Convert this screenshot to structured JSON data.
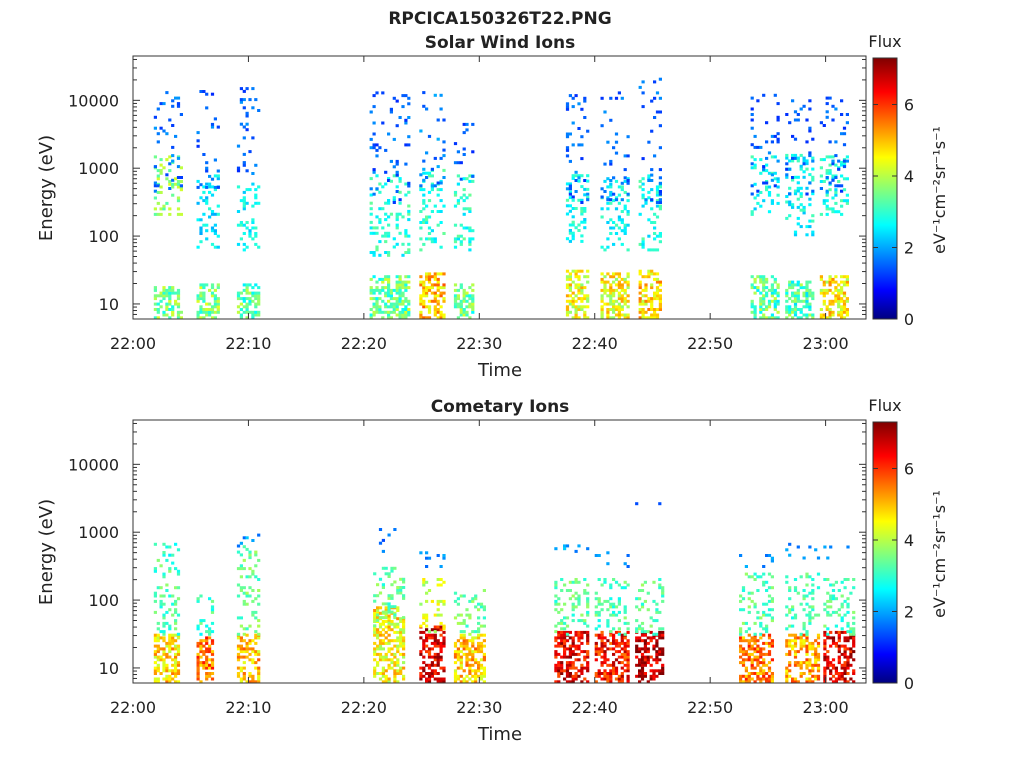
{
  "figure_title": "RPCICA150326T22.PNG",
  "chart_data": [
    {
      "type": "heatmap",
      "title": "Solar Wind Ions",
      "xlabel": "Time",
      "ylabel": "Energy (eV)",
      "y_scale": "log",
      "ylim": [
        6,
        45000
      ],
      "x_ticks": [
        "22:00",
        "22:10",
        "22:20",
        "22:30",
        "22:40",
        "22:50",
        "23:00"
      ],
      "x_ticks_min": [
        0,
        10,
        20,
        30,
        40,
        50,
        60
      ],
      "xlim_min": [
        0,
        63.5
      ],
      "y_ticks": [
        "10",
        "100",
        "1000",
        "10000"
      ],
      "y_ticks_values": [
        10,
        100,
        1000,
        10000
      ],
      "colorbar": {
        "title": "Flux",
        "label": "eV⁻¹cm⁻²sr⁻¹s⁻¹",
        "ticks": [
          "0",
          "2",
          "4",
          "6"
        ],
        "range": [
          0,
          7.3
        ],
        "colormap": "jet"
      },
      "bursts": [
        {
          "t_min": [
            1.8,
            4.2
          ],
          "low_band_eV": [
            6,
            18
          ],
          "low_flux": 3.5,
          "mid_eV": [
            200,
            1500
          ],
          "mid_flux": 3.8,
          "high_eV": [
            400,
            15000
          ],
          "high_flux": 1.7
        },
        {
          "t_min": [
            5.5,
            7.5
          ],
          "low_band_eV": [
            6,
            20
          ],
          "low_flux": 3.6,
          "mid_eV": [
            60,
            800
          ],
          "mid_flux": 2.6,
          "high_eV": [
            500,
            13000
          ],
          "high_flux": 1.6
        },
        {
          "t_min": [
            9.0,
            11.0
          ],
          "low_band_eV": [
            6,
            20
          ],
          "low_flux": 3.4,
          "mid_eV": [
            60,
            600
          ],
          "mid_flux": 2.8,
          "high_eV": [
            800,
            15000
          ],
          "high_flux": 1.6
        },
        {
          "t_min": [
            20.5,
            24.0
          ],
          "low_band_eV": [
            6,
            25
          ],
          "low_flux": 3.5,
          "mid_eV": [
            50,
            800
          ],
          "mid_flux": 3.0,
          "high_eV": [
            300,
            14000
          ],
          "high_flux": 1.6
        },
        {
          "t_min": [
            24.8,
            27.0
          ],
          "low_band_eV": [
            6,
            28
          ],
          "low_flux": 5.0,
          "mid_eV": [
            60,
            900
          ],
          "mid_flux": 3.0,
          "high_eV": [
            400,
            13000
          ],
          "high_flux": 1.8
        },
        {
          "t_min": [
            27.8,
            29.5
          ],
          "low_band_eV": [
            6,
            20
          ],
          "low_flux": 3.5,
          "mid_eV": [
            60,
            800
          ],
          "mid_flux": 3.0,
          "high_eV": [
            500,
            5000
          ],
          "high_flux": 1.5
        },
        {
          "t_min": [
            37.5,
            39.5
          ],
          "low_band_eV": [
            6,
            30
          ],
          "low_flux": 4.5,
          "mid_eV": [
            80,
            800
          ],
          "mid_flux": 2.9,
          "high_eV": [
            300,
            12000
          ],
          "high_flux": 1.6
        },
        {
          "t_min": [
            40.5,
            42.8
          ],
          "low_band_eV": [
            6,
            28
          ],
          "low_flux": 4.5,
          "mid_eV": [
            60,
            700
          ],
          "mid_flux": 2.8,
          "high_eV": [
            300,
            13000
          ],
          "high_flux": 1.6
        },
        {
          "t_min": [
            43.8,
            45.8
          ],
          "low_band_eV": [
            6,
            30
          ],
          "low_flux": 4.8,
          "mid_eV": [
            60,
            800
          ],
          "mid_flux": 2.9,
          "high_eV": [
            300,
            20000
          ],
          "high_flux": 1.6
        },
        {
          "t_min": [
            53.5,
            56.0
          ],
          "low_band_eV": [
            6,
            25
          ],
          "low_flux": 3.4,
          "mid_eV": [
            200,
            1500
          ],
          "mid_flux": 2.8,
          "high_eV": [
            400,
            12000
          ],
          "high_flux": 1.6
        },
        {
          "t_min": [
            56.5,
            59.0
          ],
          "low_band_eV": [
            6,
            22
          ],
          "low_flux": 3.3,
          "mid_eV": [
            100,
            1500
          ],
          "mid_flux": 2.8,
          "high_eV": [
            400,
            10000
          ],
          "high_flux": 1.6
        },
        {
          "t_min": [
            59.5,
            62.0
          ],
          "low_band_eV": [
            6,
            25
          ],
          "low_flux": 4.6,
          "mid_eV": [
            200,
            1500
          ],
          "mid_flux": 2.9,
          "high_eV": [
            400,
            12000
          ],
          "high_flux": 1.6
        }
      ]
    },
    {
      "type": "heatmap",
      "title": "Cometary Ions",
      "xlabel": "Time",
      "ylabel": "Energy (eV)",
      "y_scale": "log",
      "ylim": [
        6,
        45000
      ],
      "x_ticks": [
        "22:00",
        "22:10",
        "22:20",
        "22:30",
        "22:40",
        "22:50",
        "23:00"
      ],
      "x_ticks_min": [
        0,
        10,
        20,
        30,
        40,
        50,
        60
      ],
      "xlim_min": [
        0,
        63.5
      ],
      "y_ticks": [
        "10",
        "100",
        "1000",
        "10000"
      ],
      "y_ticks_values": [
        10,
        100,
        1000,
        10000
      ],
      "colorbar": {
        "title": "Flux",
        "label": "eV⁻¹cm⁻²sr⁻¹s⁻¹",
        "ticks": [
          "0",
          "2",
          "4",
          "6"
        ],
        "range": [
          0,
          7.3
        ],
        "colormap": "jet"
      },
      "bursts": [
        {
          "t_min": [
            1.8,
            4.0
          ],
          "low_band_eV": [
            6,
            30
          ],
          "low_flux": 4.8,
          "mid_eV": [
            30,
            400
          ],
          "mid_flux": 3.3,
          "high_eV": [
            400,
            700
          ],
          "high_flux": 3.0
        },
        {
          "t_min": [
            5.5,
            6.8
          ],
          "low_band_eV": [
            6,
            28
          ],
          "low_flux": 5.5,
          "mid_eV": [
            30,
            120
          ],
          "mid_flux": 3.2,
          "high_eV": [
            0,
            0
          ],
          "high_flux": 0
        },
        {
          "t_min": [
            9.0,
            10.8
          ],
          "low_band_eV": [
            6,
            30
          ],
          "low_flux": 5.0,
          "mid_eV": [
            30,
            600
          ],
          "mid_flux": 3.5,
          "high_eV": [
            600,
            1100
          ],
          "high_flux": 2.0
        },
        {
          "t_min": [
            20.8,
            23.5
          ],
          "low_band_eV": [
            6,
            80
          ],
          "low_flux": 4.6,
          "mid_eV": [
            40,
            300
          ],
          "mid_flux": 3.4,
          "high_eV": [
            500,
            1200
          ],
          "high_flux": 1.6
        },
        {
          "t_min": [
            24.8,
            27.0
          ],
          "low_band_eV": [
            6,
            40
          ],
          "low_flux": 6.5,
          "mid_eV": [
            30,
            200
          ],
          "mid_flux": 4.2,
          "high_eV": [
            300,
            600
          ],
          "high_flux": 2.0
        },
        {
          "t_min": [
            27.8,
            30.5
          ],
          "low_band_eV": [
            6,
            30
          ],
          "low_flux": 5.0,
          "mid_eV": [
            30,
            150
          ],
          "mid_flux": 3.5,
          "high_eV": [
            0,
            0
          ],
          "high_flux": 0
        },
        {
          "t_min": [
            36.5,
            39.5
          ],
          "low_band_eV": [
            6,
            35
          ],
          "low_flux": 6.5,
          "mid_eV": [
            30,
            200
          ],
          "mid_flux": 3.4,
          "high_eV": [
            500,
            700
          ],
          "high_flux": 2.0
        },
        {
          "t_min": [
            40.0,
            43.0
          ],
          "low_band_eV": [
            6,
            35
          ],
          "low_flux": 6.3,
          "mid_eV": [
            30,
            200
          ],
          "mid_flux": 3.3,
          "high_eV": [
            300,
            500
          ],
          "high_flux": 2.0
        },
        {
          "t_min": [
            43.5,
            46.0
          ],
          "low_band_eV": [
            6,
            35
          ],
          "low_flux": 6.8,
          "mid_eV": [
            30,
            200
          ],
          "mid_flux": 3.4,
          "high_eV": [
            2300,
            2600
          ],
          "high_flux": 1.8
        },
        {
          "t_min": [
            52.5,
            55.5
          ],
          "low_band_eV": [
            6,
            30
          ],
          "low_flux": 5.5,
          "mid_eV": [
            30,
            250
          ],
          "mid_flux": 3.4,
          "high_eV": [
            300,
            500
          ],
          "high_flux": 2.0
        },
        {
          "t_min": [
            56.5,
            59.5
          ],
          "low_band_eV": [
            6,
            30
          ],
          "low_flux": 5.2,
          "mid_eV": [
            30,
            250
          ],
          "mid_flux": 3.3,
          "high_eV": [
            400,
            700
          ],
          "high_flux": 2.0
        },
        {
          "t_min": [
            59.8,
            62.5
          ],
          "low_band_eV": [
            6,
            35
          ],
          "low_flux": 6.5,
          "mid_eV": [
            30,
            200
          ],
          "mid_flux": 3.3,
          "high_eV": [
            400,
            600
          ],
          "high_flux": 2.0
        }
      ]
    }
  ]
}
